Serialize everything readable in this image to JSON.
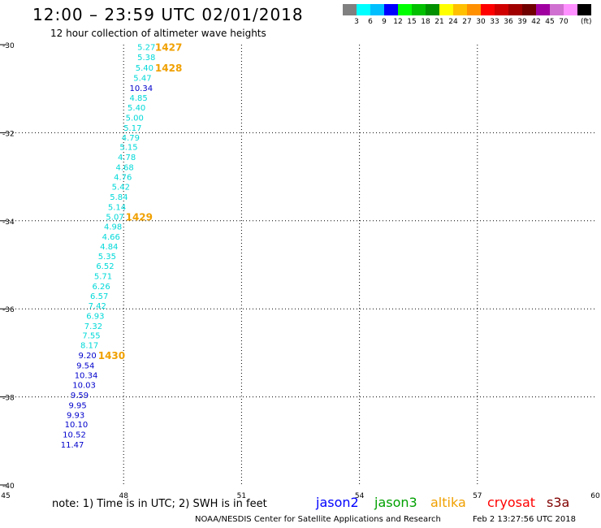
{
  "header": {
    "title": "12:00 – 23:59 UTC 02/01/2018",
    "subtitle": "12 hour collection of altimeter wave heights"
  },
  "colorbar": {
    "colors": [
      "#808080",
      "#00ffff",
      "#00bfff",
      "#0000ff",
      "#00ff00",
      "#00c000",
      "#009000",
      "#ffff00",
      "#ffc000",
      "#ff9000",
      "#ff0000",
      "#d00000",
      "#a00000",
      "#700000",
      "#a000a0",
      "#d070d0",
      "#ff90ff",
      "#000000"
    ],
    "labels": [
      "3",
      "6",
      "9",
      "12",
      "15",
      "18",
      "21",
      "24",
      "27",
      "30",
      "33",
      "36",
      "39",
      "42",
      "45",
      "70"
    ],
    "unit": "(ft)"
  },
  "chart_data": {
    "type": "scatter",
    "x_range": [
      45,
      60
    ],
    "y_range": [
      -40,
      -30
    ],
    "x_ticks": [
      "45",
      "48",
      "51",
      "54",
      "57",
      "60"
    ],
    "y_ticks": [
      "-30",
      "-32",
      "-34",
      "-36",
      "-38",
      "-40"
    ],
    "points": [
      {
        "lon": 48.35,
        "lat": -30.05,
        "value": "5.27",
        "color": "#00d8d8"
      },
      {
        "lon": 48.35,
        "lat": -30.28,
        "value": "5.38",
        "color": "#00d8d8"
      },
      {
        "lon": 48.3,
        "lat": -30.52,
        "value": "5.40",
        "color": "#00d8d8"
      },
      {
        "lon": 48.25,
        "lat": -30.75,
        "value": "5.47",
        "color": "#00d8d8"
      },
      {
        "lon": 48.15,
        "lat": -30.98,
        "value": "10.34",
        "color": "#0000cc"
      },
      {
        "lon": 48.15,
        "lat": -31.2,
        "value": "4.85",
        "color": "#00d8d8"
      },
      {
        "lon": 48.1,
        "lat": -31.42,
        "value": "5.40",
        "color": "#00d8d8"
      },
      {
        "lon": 48.05,
        "lat": -31.65,
        "value": "5.00",
        "color": "#00d8d8"
      },
      {
        "lon": 48.0,
        "lat": -31.88,
        "value": "5.17",
        "color": "#00d8d8"
      },
      {
        "lon": 47.95,
        "lat": -32.1,
        "value": "4.79",
        "color": "#00d8d8"
      },
      {
        "lon": 47.9,
        "lat": -32.32,
        "value": "5.15",
        "color": "#00d8d8"
      },
      {
        "lon": 47.85,
        "lat": -32.55,
        "value": "4.78",
        "color": "#00d8d8"
      },
      {
        "lon": 47.8,
        "lat": -32.78,
        "value": "4.68",
        "color": "#00d8d8"
      },
      {
        "lon": 47.75,
        "lat": -33.0,
        "value": "4.76",
        "color": "#00d8d8"
      },
      {
        "lon": 47.7,
        "lat": -33.22,
        "value": "5.42",
        "color": "#00d8d8"
      },
      {
        "lon": 47.65,
        "lat": -33.45,
        "value": "5.84",
        "color": "#00d8d8"
      },
      {
        "lon": 47.6,
        "lat": -33.68,
        "value": "5.14",
        "color": "#00d8d8"
      },
      {
        "lon": 47.55,
        "lat": -33.9,
        "value": "5.07",
        "color": "#00d8d8"
      },
      {
        "lon": 47.5,
        "lat": -34.12,
        "value": "4.98",
        "color": "#00d8d8"
      },
      {
        "lon": 47.45,
        "lat": -34.35,
        "value": "4.66",
        "color": "#00d8d8"
      },
      {
        "lon": 47.4,
        "lat": -34.58,
        "value": "4.84",
        "color": "#00d8d8"
      },
      {
        "lon": 47.35,
        "lat": -34.8,
        "value": "5.35",
        "color": "#00d8d8"
      },
      {
        "lon": 47.3,
        "lat": -35.02,
        "value": "6.52",
        "color": "#00d8d8"
      },
      {
        "lon": 47.25,
        "lat": -35.25,
        "value": "5.71",
        "color": "#00d8d8"
      },
      {
        "lon": 47.2,
        "lat": -35.48,
        "value": "6.26",
        "color": "#00d8d8"
      },
      {
        "lon": 47.15,
        "lat": -35.7,
        "value": "6.57",
        "color": "#00d8d8"
      },
      {
        "lon": 47.1,
        "lat": -35.92,
        "value": "7.42",
        "color": "#00d8d8"
      },
      {
        "lon": 47.05,
        "lat": -36.15,
        "value": "6.93",
        "color": "#00d8d8"
      },
      {
        "lon": 47.0,
        "lat": -36.38,
        "value": "7.32",
        "color": "#00d8d8"
      },
      {
        "lon": 46.95,
        "lat": -36.6,
        "value": "7.55",
        "color": "#00d8d8"
      },
      {
        "lon": 46.9,
        "lat": -36.82,
        "value": "8.17",
        "color": "#00d8d8"
      },
      {
        "lon": 46.85,
        "lat": -37.05,
        "value": "9.20",
        "color": "#0000cc"
      },
      {
        "lon": 46.8,
        "lat": -37.28,
        "value": "9.54",
        "color": "#0000cc"
      },
      {
        "lon": 46.75,
        "lat": -37.5,
        "value": "10.34",
        "color": "#0000cc"
      },
      {
        "lon": 46.7,
        "lat": -37.72,
        "value": "10.03",
        "color": "#0000cc"
      },
      {
        "lon": 46.65,
        "lat": -37.95,
        "value": "9.59",
        "color": "#0000cc"
      },
      {
        "lon": 46.6,
        "lat": -38.18,
        "value": "9.95",
        "color": "#0000cc"
      },
      {
        "lon": 46.55,
        "lat": -38.4,
        "value": "9.93",
        "color": "#0000cc"
      },
      {
        "lon": 46.5,
        "lat": -38.62,
        "value": "10.10",
        "color": "#0000cc"
      },
      {
        "lon": 46.45,
        "lat": -38.85,
        "value": "10.52",
        "color": "#0000cc"
      },
      {
        "lon": 46.4,
        "lat": -39.08,
        "value": "11.47",
        "color": "#0000cc"
      }
    ],
    "time_labels": [
      {
        "lon": 48.8,
        "lat": -30.05,
        "text": "1427",
        "color": "#f0a000"
      },
      {
        "lon": 48.8,
        "lat": -30.52,
        "text": "1428",
        "color": "#f0a000"
      },
      {
        "lon": 48.05,
        "lat": -33.9,
        "text": "1429",
        "color": "#f0a000"
      },
      {
        "lon": 47.35,
        "lat": -37.05,
        "text": "1430",
        "color": "#f0a000"
      }
    ]
  },
  "note": "note: 1) Time is in UTC; 2) SWH is in feet",
  "satellites": [
    {
      "name": "jason2",
      "color": "#0000ff"
    },
    {
      "name": "jason3",
      "color": "#00a000"
    },
    {
      "name": "altika",
      "color": "#f0a000"
    },
    {
      "name": "cryosat",
      "color": "#ff0000"
    },
    {
      "name": "s3a",
      "color": "#800000"
    }
  ],
  "footer": {
    "credit": "NOAA/NESDIS Center for Satellite Applications and Research",
    "timestamp": "Feb  2 13:27:56 UTC 2018"
  }
}
